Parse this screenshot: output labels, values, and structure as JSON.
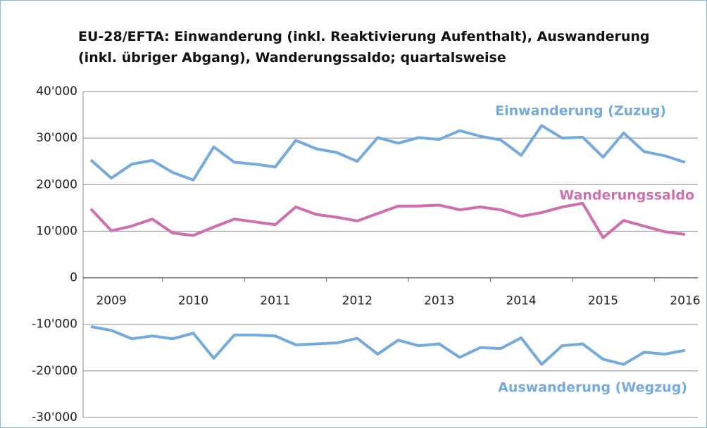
{
  "chart_data": {
    "type": "line",
    "title": "EU-28/EFTA: Einwanderung (inkl. Reaktivierung Aufenthalt), Auswanderung (inkl. übriger Abgang), Wanderungssaldo; quartalsweise",
    "categories": [
      null,
      "2009",
      null,
      null,
      null,
      "2010",
      null,
      null,
      null,
      "2011",
      null,
      null,
      null,
      "2012",
      null,
      null,
      null,
      "2013",
      null,
      null,
      null,
      "2014",
      null,
      null,
      null,
      "2015",
      null,
      null,
      null,
      "2016"
    ],
    "series": [
      {
        "name": "Einwanderung (Zuzug)",
        "color": "#75aade",
        "values": [
          25300,
          21400,
          24400,
          25200,
          22600,
          21000,
          28100,
          24800,
          24400,
          23800,
          29500,
          27700,
          26900,
          25000,
          30100,
          28900,
          30100,
          29700,
          31600,
          30400,
          29600,
          26300,
          32700,
          30000,
          30200,
          25900,
          31100,
          27100,
          26200,
          24800
        ]
      },
      {
        "name": "Wanderungssaldo",
        "color": "#cf6fad",
        "values": [
          14800,
          10100,
          11100,
          12600,
          9600,
          9100,
          10900,
          12600,
          12000,
          11400,
          15200,
          13600,
          13000,
          12200,
          13800,
          15400,
          15400,
          15600,
          14600,
          15200,
          14600,
          13200,
          14000,
          15200,
          16000,
          8600,
          12300,
          11100,
          9900,
          9300
        ]
      },
      {
        "name": "Auswanderung (Wegzug)",
        "color": "#75aade",
        "values": [
          -10500,
          -11300,
          -13100,
          -12500,
          -13100,
          -11900,
          -17300,
          -12300,
          -12300,
          -12500,
          -14400,
          -14200,
          -14000,
          -13000,
          -16400,
          -13400,
          -14600,
          -14200,
          -17100,
          -15000,
          -15200,
          -12900,
          -18600,
          -14600,
          -14200,
          -17500,
          -18600,
          -16000,
          -16400,
          -15600
        ]
      }
    ],
    "ylim": [
      -30000,
      40000
    ],
    "yticks": [
      {
        "value": -30000,
        "label": "-30'000"
      },
      {
        "value": -20000,
        "label": "-20'000"
      },
      {
        "value": -10000,
        "label": "-10'000"
      },
      0,
      {
        "value": 10000,
        "label": "10'000"
      },
      {
        "value": 20000,
        "label": "20'000"
      },
      {
        "value": 30000,
        "label": "30'000"
      },
      {
        "value": 40000,
        "label": "40'000"
      }
    ],
    "grid": true
  }
}
